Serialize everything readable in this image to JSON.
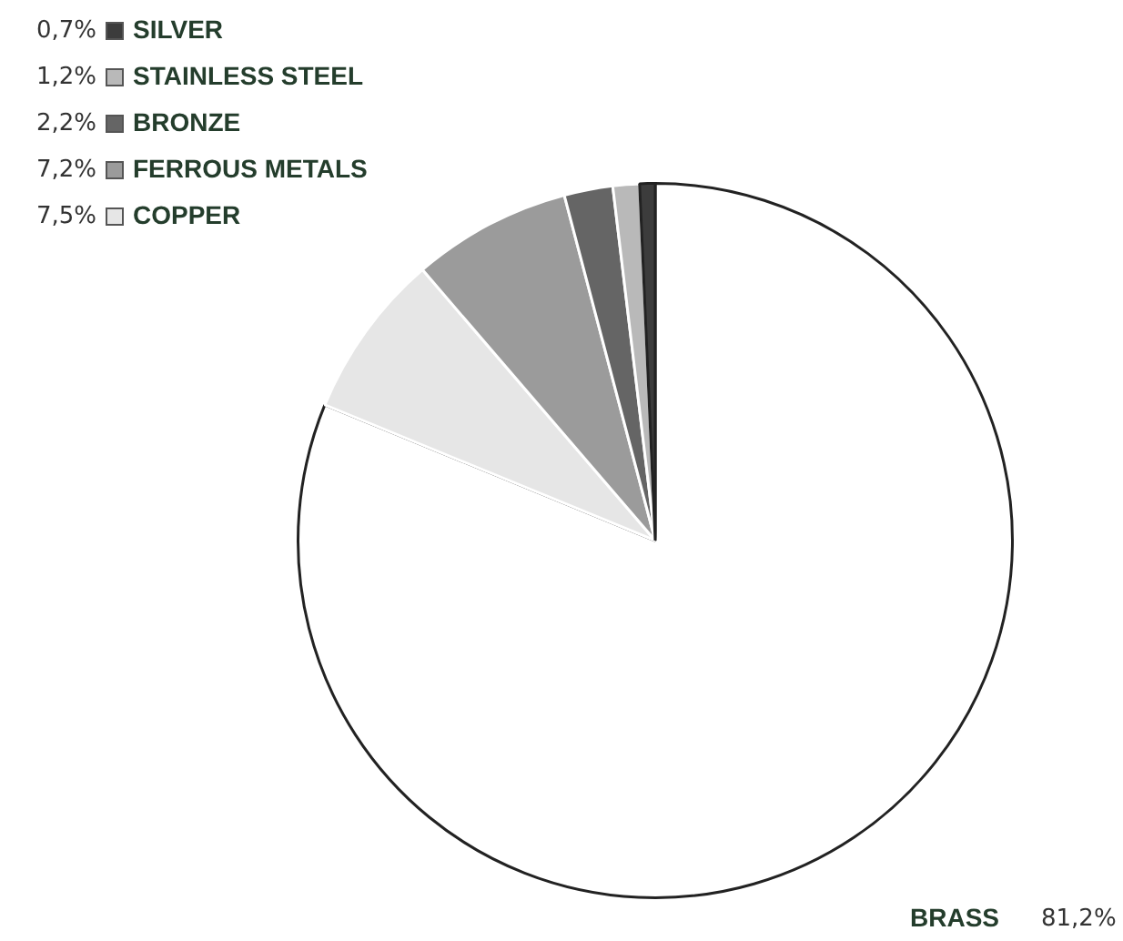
{
  "chart_data": {
    "type": "pie",
    "categories": [
      "BRASS",
      "COPPER",
      "FERROUS METALS",
      "BRONZE",
      "STAINLESS STEEL",
      "SILVER"
    ],
    "values": [
      81.2,
      7.5,
      7.2,
      2.2,
      1.2,
      0.7
    ],
    "value_labels": [
      "81,2%",
      "7,5%",
      "7,2%",
      "2,2%",
      "1,2%",
      "0,7%"
    ],
    "colors": [
      "#ffffff",
      "#e6e6e6",
      "#9b9b9b",
      "#656565",
      "#b9b9b9",
      "#3c3c3c"
    ],
    "legend": "top left"
  }
}
